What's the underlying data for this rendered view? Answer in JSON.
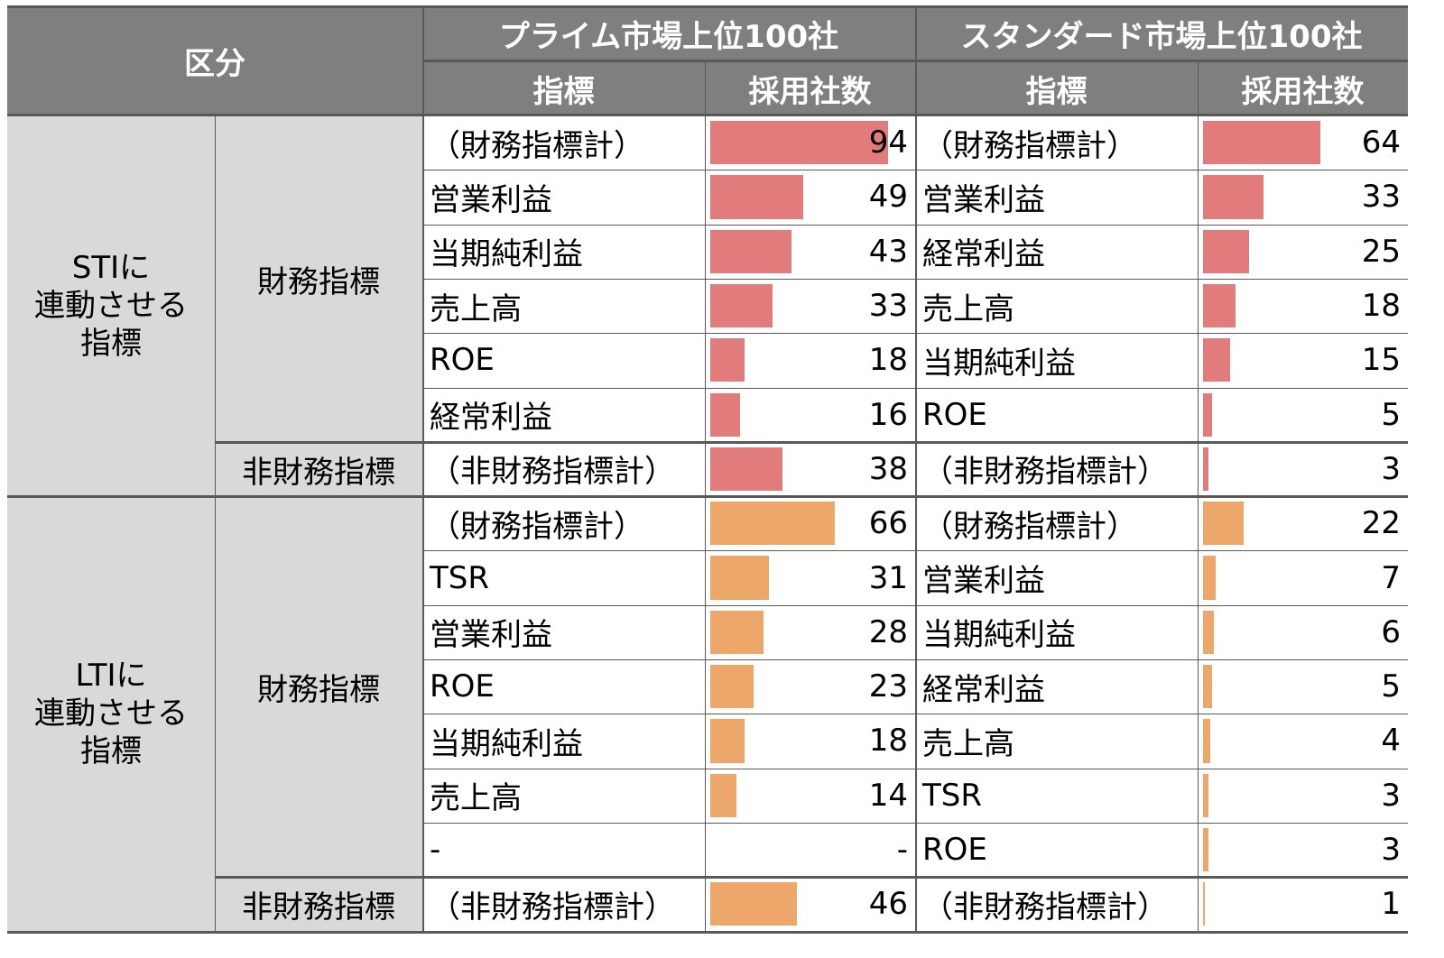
{
  "colors": {
    "sti_bar": "#e27b7b",
    "lti_bar": "#eda76a",
    "header_bg": "#7f7f7f",
    "group_bg": "#d9d9d9"
  },
  "header": {
    "category": "区分",
    "prime": "プライム市場上位100社",
    "standard": "スタンダード市場上位100社",
    "indicator": "指標",
    "count": "採用社数"
  },
  "groups": {
    "sti": "STIに\n連動させる\n指標",
    "lti": "LTIに\n連動させる\n指標",
    "financial": "財務指標",
    "nonfinancial": "非財務指標"
  },
  "chart_data": {
    "type": "table",
    "max_value": 100,
    "sections": [
      {
        "section": "STI",
        "rows": [
          {
            "sub": "財務指標",
            "prime_label": "（財務指標計）",
            "prime_value": 94,
            "std_label": "（財務指標計）",
            "std_value": 64
          },
          {
            "sub": "財務指標",
            "prime_label": "営業利益",
            "prime_value": 49,
            "std_label": "営業利益",
            "std_value": 33
          },
          {
            "sub": "財務指標",
            "prime_label": "当期純利益",
            "prime_value": 43,
            "std_label": "経常利益",
            "std_value": 25
          },
          {
            "sub": "財務指標",
            "prime_label": "売上高",
            "prime_value": 33,
            "std_label": "売上高",
            "std_value": 18
          },
          {
            "sub": "財務指標",
            "prime_label": "ROE",
            "prime_value": 18,
            "std_label": "当期純利益",
            "std_value": 15
          },
          {
            "sub": "財務指標",
            "prime_label": "経常利益",
            "prime_value": 16,
            "std_label": "ROE",
            "std_value": 5
          },
          {
            "sub": "非財務指標",
            "prime_label": "（非財務指標計）",
            "prime_value": 38,
            "std_label": "（非財務指標計）",
            "std_value": 3
          }
        ]
      },
      {
        "section": "LTI",
        "rows": [
          {
            "sub": "財務指標",
            "prime_label": "（財務指標計）",
            "prime_value": 66,
            "std_label": "（財務指標計）",
            "std_value": 22
          },
          {
            "sub": "財務指標",
            "prime_label": "TSR",
            "prime_value": 31,
            "std_label": "営業利益",
            "std_value": 7
          },
          {
            "sub": "財務指標",
            "prime_label": "営業利益",
            "prime_value": 28,
            "std_label": "当期純利益",
            "std_value": 6
          },
          {
            "sub": "財務指標",
            "prime_label": "ROE",
            "prime_value": 23,
            "std_label": "経常利益",
            "std_value": 5
          },
          {
            "sub": "財務指標",
            "prime_label": "当期純利益",
            "prime_value": 18,
            "std_label": "売上高",
            "std_value": 4
          },
          {
            "sub": "財務指標",
            "prime_label": "売上高",
            "prime_value": 14,
            "std_label": "TSR",
            "std_value": 3
          },
          {
            "sub": "財務指標",
            "prime_label": "-",
            "prime_value": "-",
            "std_label": "ROE",
            "std_value": 3
          },
          {
            "sub": "非財務指標",
            "prime_label": "（非財務指標計）",
            "prime_value": 46,
            "std_label": "（非財務指標計）",
            "std_value": 1
          }
        ]
      }
    ]
  }
}
